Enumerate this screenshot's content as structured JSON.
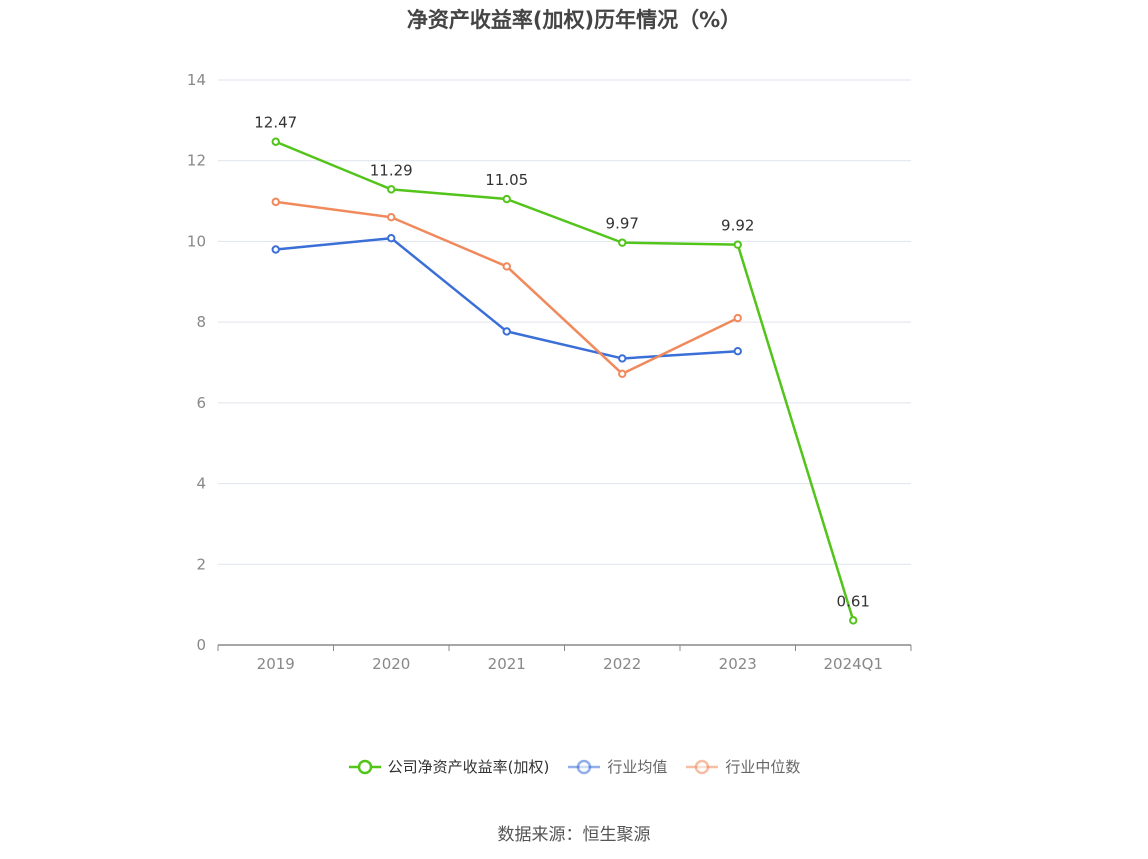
{
  "chart_data": {
    "type": "line",
    "title": "净资产收益率(加权)历年情况（%）",
    "categories": [
      "2019",
      "2020",
      "2021",
      "2022",
      "2023",
      "2024Q1"
    ],
    "ylim": [
      0,
      14
    ],
    "yticks": [
      "0",
      "2",
      "4",
      "6",
      "8",
      "10",
      "12",
      "14"
    ],
    "grid": true,
    "legend_position": "bottom",
    "series": [
      {
        "name": "公司净资产收益率(加权)",
        "color": "#52c41a",
        "values": [
          12.47,
          11.29,
          11.05,
          9.97,
          9.92,
          0.61
        ],
        "labels": [
          "12.47",
          "11.29",
          "11.05",
          "9.97",
          "9.92",
          "0.61"
        ]
      },
      {
        "name": "行业均值",
        "color": "#3b6fd8",
        "values": [
          9.8,
          10.08,
          7.77,
          7.1,
          7.28,
          null
        ]
      },
      {
        "name": "行业中位数",
        "color": "#f08a5d",
        "values": [
          10.98,
          10.6,
          9.38,
          6.72,
          8.1,
          null
        ]
      }
    ]
  },
  "source": "数据来源：恒生聚源"
}
